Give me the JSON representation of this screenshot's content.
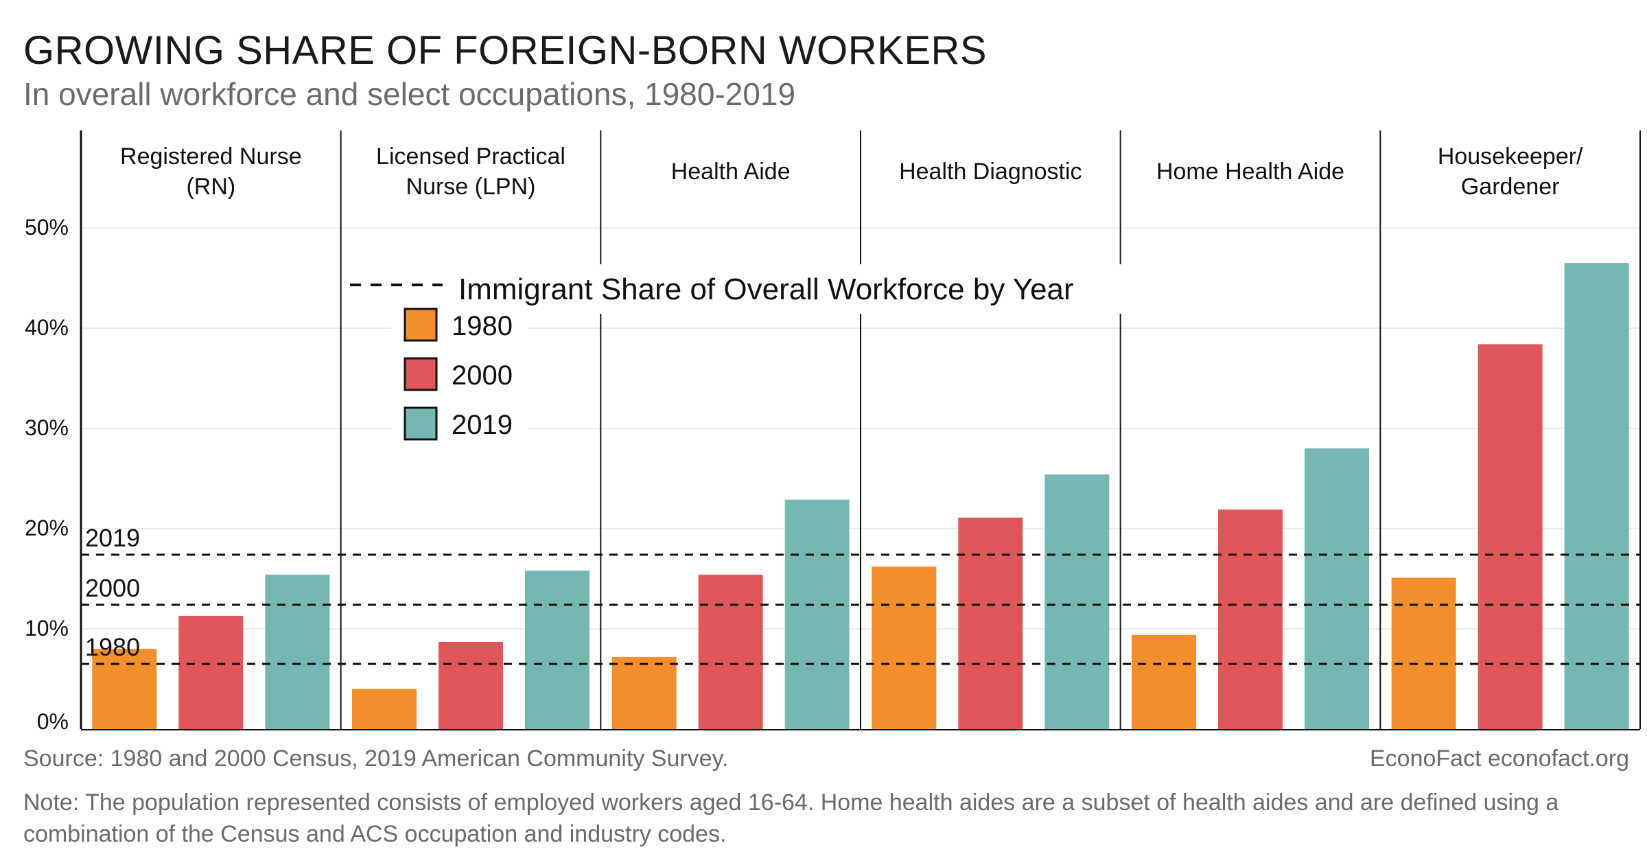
{
  "header": {
    "title": "GROWING SHARE OF FOREIGN-BORN WORKERS",
    "subtitle": "In overall workforce and select occupations, 1980-2019"
  },
  "footer": {
    "source": "Source: 1980 and 2000 Census, 2019 American Community Survey.",
    "credit": "EconoFact econofact.org",
    "note": "Note: The population represented consists of employed workers aged 16-64. Home health aides are a subset of health aides and are defined using a combination of the Census and ACS occupation and industry codes."
  },
  "chart_data": {
    "type": "bar",
    "categories": [
      [
        "Registered Nurse",
        "(RN)"
      ],
      [
        "Licensed Practical",
        "Nurse (LPN)"
      ],
      [
        "Health Aide"
      ],
      [
        "Health Diagnostic"
      ],
      [
        "Home Health Aide"
      ],
      [
        "Housekeeper/",
        "Gardener"
      ]
    ],
    "series": [
      {
        "name": "1980",
        "color": "#f28e2b",
        "values": [
          8.0,
          4.0,
          7.2,
          16.2,
          9.4,
          15.1
        ]
      },
      {
        "name": "2000",
        "color": "#e15759",
        "values": [
          11.3,
          8.7,
          15.4,
          21.1,
          21.9,
          38.4
        ]
      },
      {
        "name": "2019",
        "color": "#76b7b2",
        "values": [
          15.4,
          15.8,
          22.9,
          25.4,
          28.0,
          46.5
        ]
      }
    ],
    "reference_lines": [
      {
        "label": "2019",
        "value": 17.4
      },
      {
        "label": "2000",
        "value": 12.4
      },
      {
        "label": "1980",
        "value": 6.5
      }
    ],
    "legend_line_label": "Immigrant Share of Overall Workforce by Year",
    "legend_position": "top-center",
    "y_ticks": [
      "0%",
      "10%",
      "20%",
      "30%",
      "40%",
      "50%"
    ],
    "ylim": [
      0,
      50
    ],
    "grid": true
  }
}
